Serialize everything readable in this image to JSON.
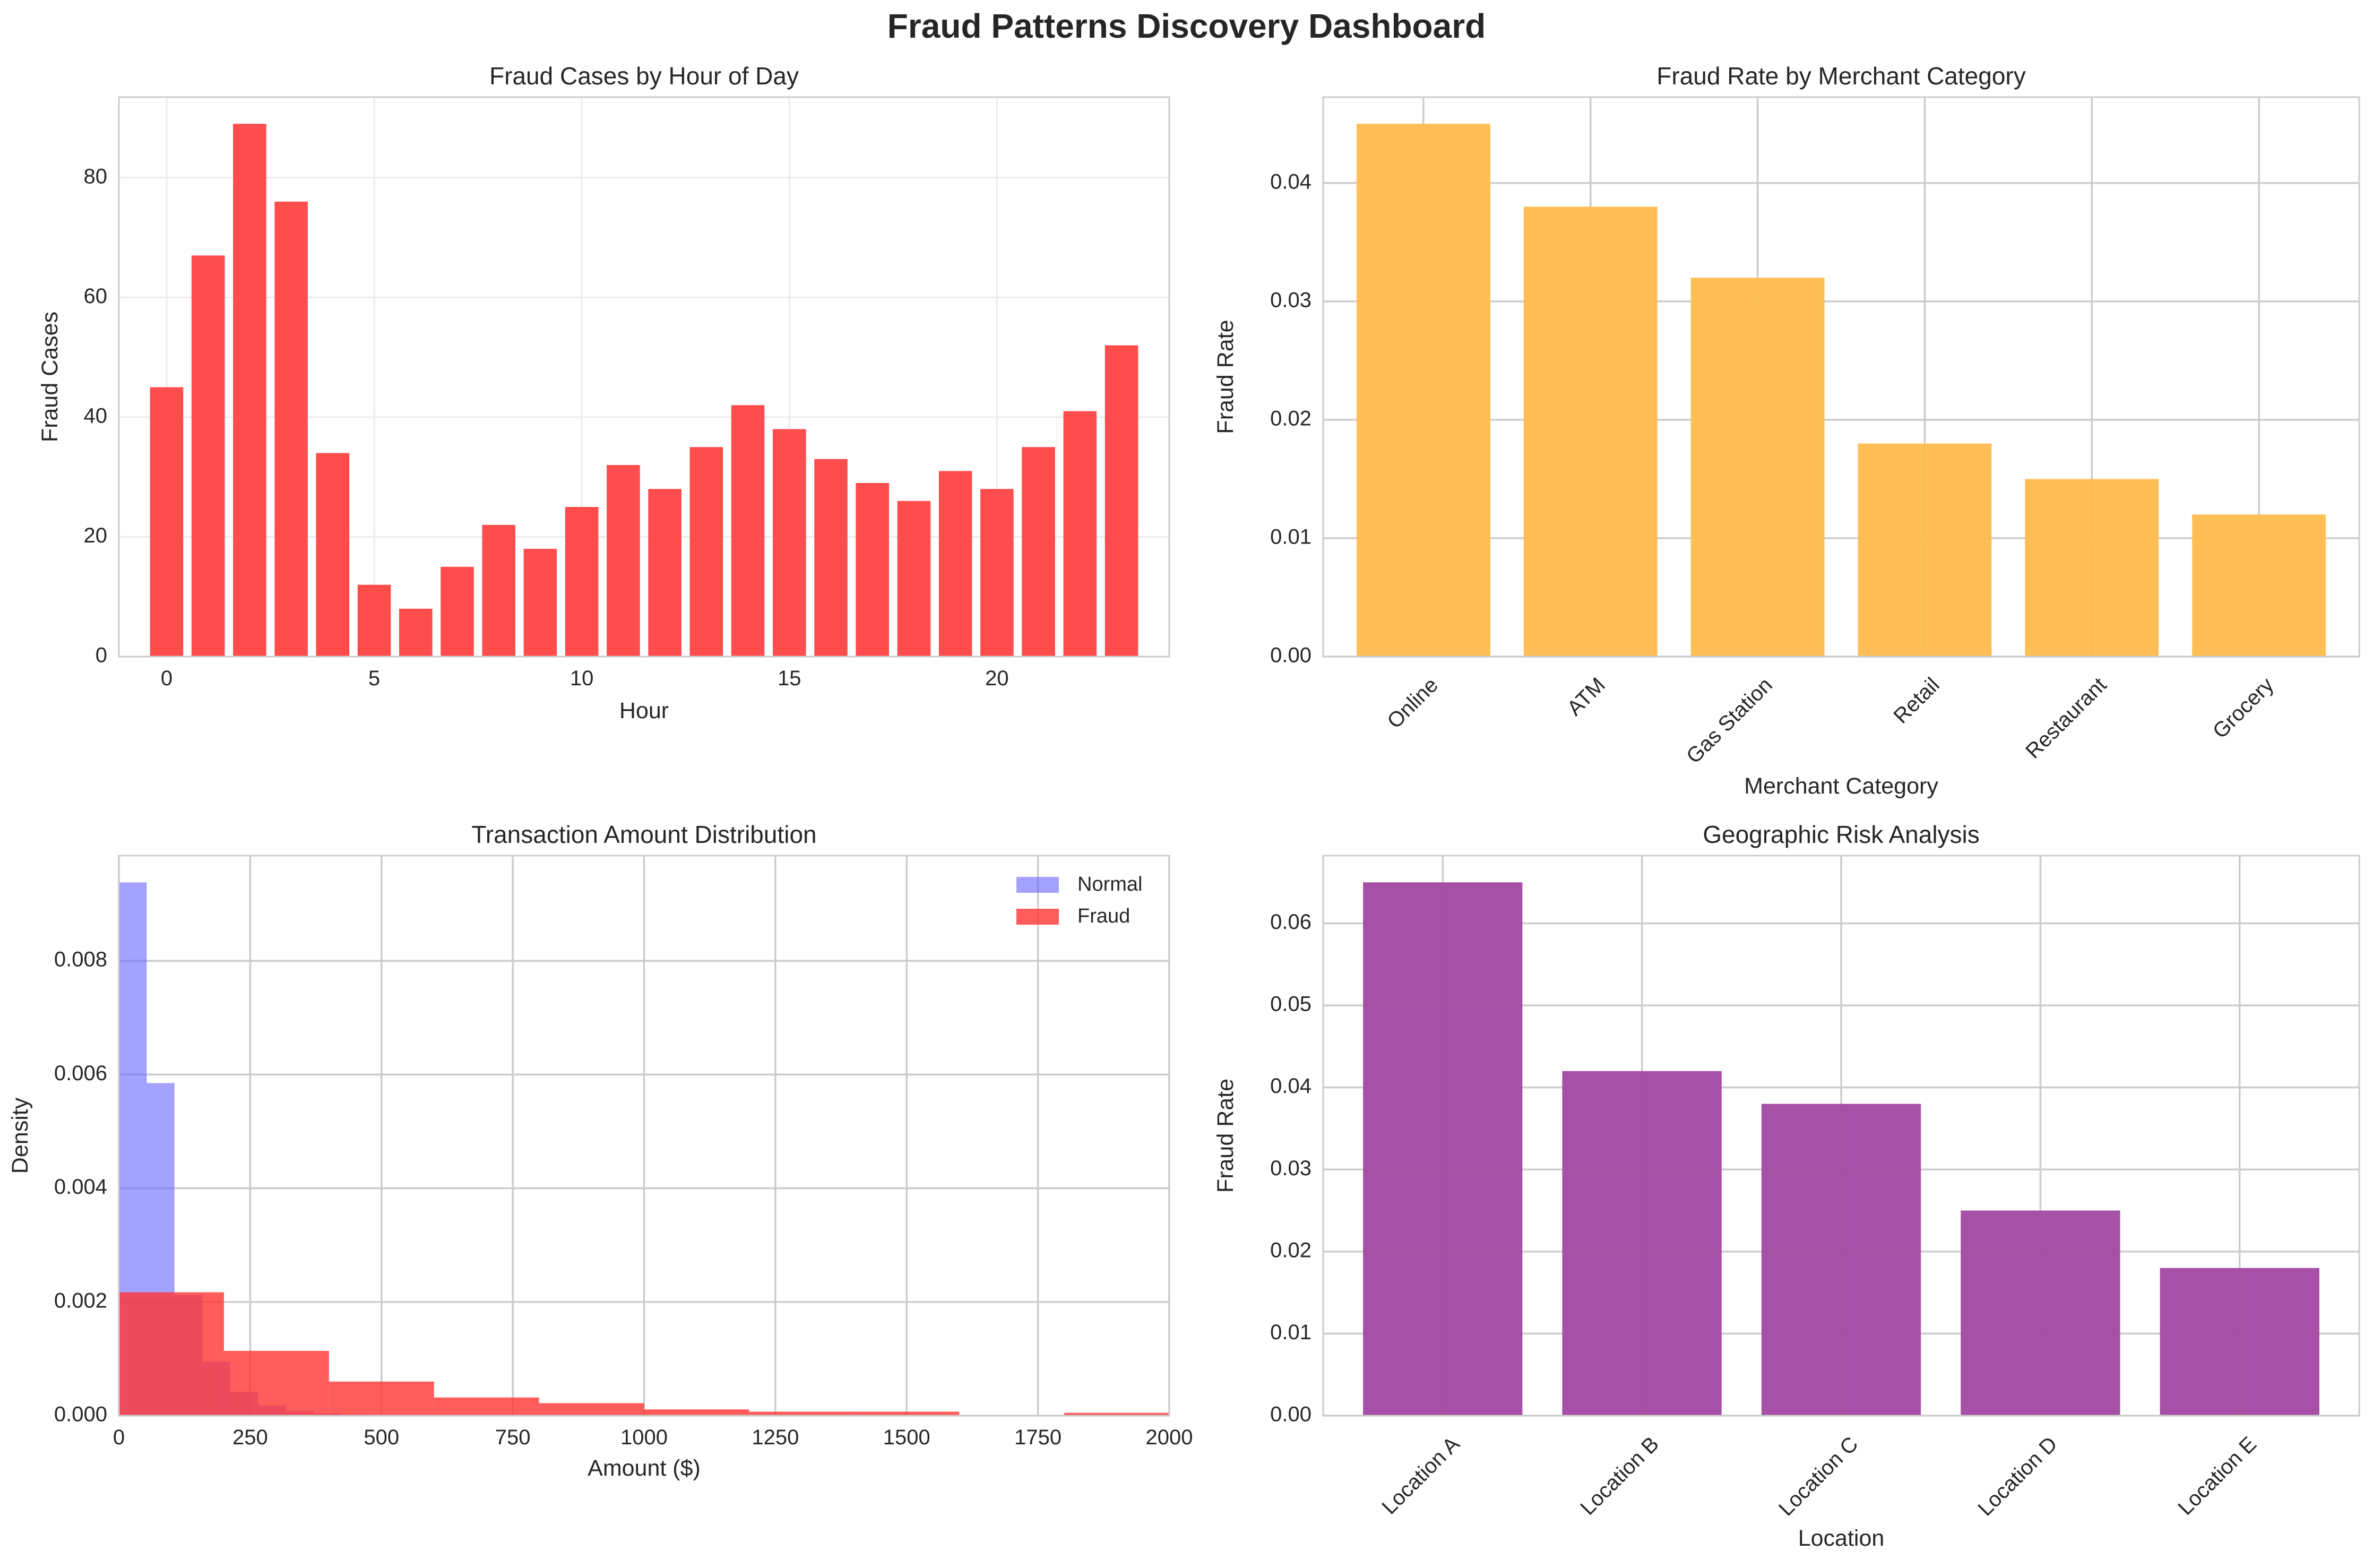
{
  "title": "Fraud Patterns Discovery Dashboard",
  "colors": {
    "hour_bars": "#ff4d4d",
    "merchant_bars": "#ffbc4d",
    "location_bars": "#a54ca5",
    "normal_hist": "#6666ff",
    "fraud_hist": "#ff3333",
    "grid": "#cccccc",
    "axis_frame": "#cccccc"
  },
  "chart_data": [
    {
      "id": "hour",
      "type": "bar",
      "title": "Fraud Cases by Hour of Day",
      "xlabel": "Hour",
      "ylabel": "Fraud Cases",
      "x": [
        0,
        1,
        2,
        3,
        4,
        5,
        6,
        7,
        8,
        9,
        10,
        11,
        12,
        13,
        14,
        15,
        16,
        17,
        18,
        19,
        20,
        21,
        22,
        23
      ],
      "values": [
        45,
        67,
        89,
        76,
        34,
        12,
        8,
        15,
        22,
        18,
        25,
        32,
        28,
        35,
        42,
        38,
        33,
        29,
        26,
        31,
        28,
        35,
        41,
        52
      ],
      "xlim": [
        -1.15,
        24.15
      ],
      "ylim": [
        0,
        93.45
      ],
      "xticks": [
        0,
        5,
        10,
        15,
        20
      ],
      "xtick_labels": [
        "0",
        "5",
        "10",
        "15",
        "20"
      ],
      "yticks": [
        0,
        20,
        40,
        60,
        80
      ],
      "ytick_labels": [
        "0",
        "20",
        "40",
        "60",
        "80"
      ],
      "grid": true
    },
    {
      "id": "merchant",
      "type": "bar",
      "title": "Fraud Rate by Merchant Category",
      "xlabel": "Merchant Category",
      "ylabel": "Fraud Rate",
      "categories": [
        "Online",
        "ATM",
        "Gas Station",
        "Retail",
        "Restaurant",
        "Grocery"
      ],
      "values": [
        0.045,
        0.038,
        0.032,
        0.018,
        0.015,
        0.012
      ],
      "ylim": [
        0,
        0.04725
      ],
      "yticks": [
        0,
        0.01,
        0.02,
        0.03,
        0.04
      ],
      "ytick_labels": [
        "0.00",
        "0.01",
        "0.02",
        "0.03",
        "0.04"
      ],
      "grid": true
    },
    {
      "id": "amount",
      "type": "histogram",
      "title": "Transaction Amount Distribution",
      "xlabel": "Amount ($)",
      "ylabel": "Density",
      "xlim": [
        0,
        2000
      ],
      "ylim": [
        0,
        0.00985
      ],
      "xticks": [
        0,
        250,
        500,
        750,
        1000,
        1250,
        1500,
        1750,
        2000
      ],
      "xtick_labels": [
        "0",
        "250",
        "500",
        "750",
        "1000",
        "1250",
        "1500",
        "1750",
        "2000"
      ],
      "yticks": [
        0,
        0.002,
        0.004,
        0.006,
        0.008
      ],
      "ytick_labels": [
        "0.000",
        "0.002",
        "0.004",
        "0.006",
        "0.008"
      ],
      "legend_position": "top-right",
      "grid": true,
      "series": [
        {
          "name": "Normal",
          "bin_edges": [
            0,
            53,
            106,
            159,
            212,
            265,
            318,
            371,
            424,
            477,
            530
          ],
          "values": [
            0.00938,
            0.00585,
            0.00212,
            0.00095,
            0.00042,
            0.00018,
            8e-05,
            4e-05,
            2e-05,
            1e-05
          ]
        },
        {
          "name": "Fraud",
          "bin_edges": [
            0,
            200,
            400,
            600,
            800,
            1000,
            1200,
            1400,
            1600,
            1800,
            2000
          ],
          "values": [
            0.00217,
            0.00114,
            0.0006,
            0.00032,
            0.00022,
            0.00011,
            7e-05,
            7e-05,
            0.0,
            5e-05
          ]
        }
      ]
    },
    {
      "id": "location",
      "type": "bar",
      "title": "Geographic Risk Analysis",
      "xlabel": "Location",
      "ylabel": "Fraud Rate",
      "categories": [
        "Location A",
        "Location B",
        "Location C",
        "Location D",
        "Location E"
      ],
      "values": [
        0.065,
        0.042,
        0.038,
        0.025,
        0.018
      ],
      "ylim": [
        0,
        0.06825
      ],
      "yticks": [
        0,
        0.01,
        0.02,
        0.03,
        0.04,
        0.05,
        0.06
      ],
      "ytick_labels": [
        "0.00",
        "0.01",
        "0.02",
        "0.03",
        "0.04",
        "0.05",
        "0.06"
      ],
      "grid": true
    }
  ]
}
